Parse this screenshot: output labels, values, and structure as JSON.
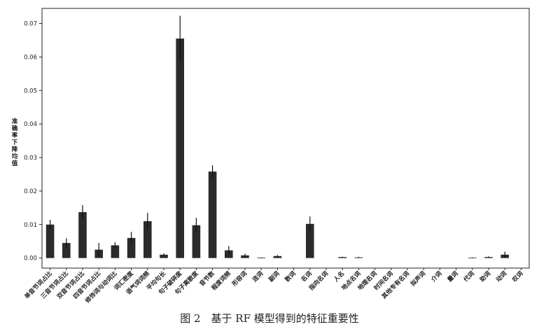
{
  "chart_data": {
    "type": "bar",
    "title": "",
    "xlabel": "",
    "ylabel": "准确率下降均值",
    "ylim": [
      -0.003,
      0.0745
    ],
    "yticks": [
      "0.00",
      "0.01",
      "0.02",
      "0.03",
      "0.04",
      "0.05",
      "0.06",
      "0.07"
    ],
    "grid": false,
    "legend": "none",
    "bar_color": "#2b2b2b",
    "error_color": "#111111",
    "categories": [
      "单音节词占比",
      "三音节词占比",
      "双音节词占比",
      "四音节词占比",
      "修饰词与动词比",
      "词汇密度",
      "语气词词频",
      "平均句长",
      "句子破碎度",
      "句子离散度",
      "音节数",
      "程度词频",
      "形容词",
      "连词",
      "副词",
      "数词",
      "名词",
      "指向名词",
      "人名",
      "地点名词",
      "地理名词",
      "时间名词",
      "其他专有名词",
      "拟声词",
      "介词",
      "量词",
      "代词",
      "助词",
      "动词",
      "叹词"
    ],
    "values": [
      0.01,
      0.0045,
      0.0137,
      0.0025,
      0.0038,
      0.006,
      0.011,
      0.001,
      0.0655,
      0.0098,
      0.0258,
      0.0023,
      0.0008,
      0.0001,
      0.0006,
      0.0,
      0.0102,
      0.0,
      0.0003,
      0.0002,
      0.0,
      0.0,
      0.0,
      0.0,
      0.0,
      0.0,
      0.0001,
      0.0003,
      0.001,
      0.0
    ],
    "errors": [
      0.0014,
      0.0014,
      0.0021,
      0.002,
      0.0009,
      0.0018,
      0.0025,
      0.0004,
      0.0068,
      0.0022,
      0.0019,
      0.0013,
      0.0005,
      0.0001,
      0.0003,
      0.0,
      0.0022,
      0.0,
      0.0001,
      0.0002,
      0.0,
      0.0,
      0.0,
      0.0,
      0.0,
      0.0,
      0.0001,
      0.0002,
      0.0009,
      0.0
    ]
  },
  "caption": "图 2　基于 RF 模型得到的特征重要性"
}
